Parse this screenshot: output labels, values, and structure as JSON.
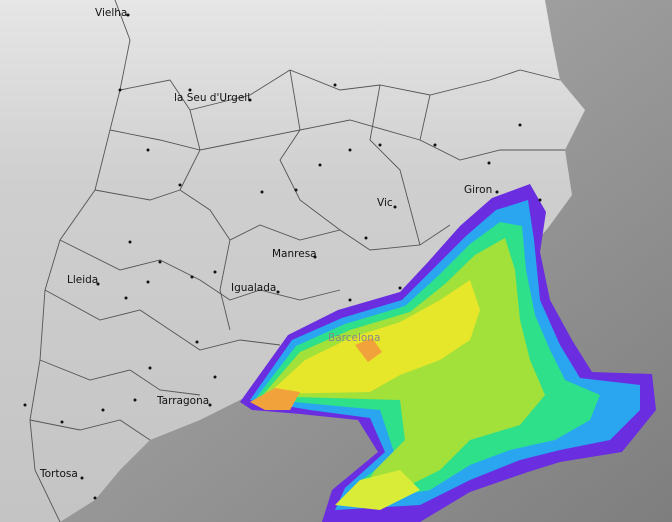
{
  "map": {
    "places": [
      {
        "label": "Vielha"
      },
      {
        "label": "la Seu d'Urgell"
      },
      {
        "label": "Giron"
      },
      {
        "label": "Vic"
      },
      {
        "label": "Manresa"
      },
      {
        "label": "Lleida"
      },
      {
        "label": "Igualada"
      },
      {
        "label": "Barcelona"
      },
      {
        "label": "Tarragona"
      },
      {
        "label": "Tortosa"
      }
    ]
  }
}
